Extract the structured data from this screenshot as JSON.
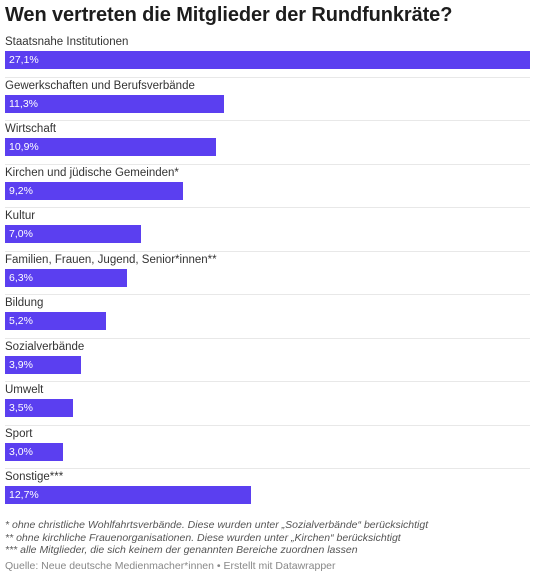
{
  "header": {
    "title": "Wen vertreten die Mitglieder der Rundfunkräte?"
  },
  "chart_data": {
    "type": "bar",
    "orientation": "horizontal",
    "title": "Wen vertreten die Mitglieder der Rundfunkräte?",
    "categories": [
      "Staatsnahe Institutionen",
      "Gewerkschaften und Berufsverbände",
      "Wirtschaft",
      "Kirchen und jüdische Gemeinden*",
      "Kultur",
      "Familien, Frauen, Jugend, Senior*innen**",
      "Bildung",
      "Sozialverbände",
      "Umwelt",
      "Sport",
      "Sonstige***"
    ],
    "values": [
      27.1,
      11.3,
      10.9,
      9.2,
      7.0,
      6.3,
      5.2,
      3.9,
      3.5,
      3.0,
      12.7
    ],
    "value_labels": [
      "27,1%",
      "11,3%",
      "10,9%",
      "9,2%",
      "7,0%",
      "6,3%",
      "5,2%",
      "3,9%",
      "3,5%",
      "3,0%",
      "12,7%"
    ],
    "xlim": [
      0,
      27.1
    ],
    "bar_color": "#5b3ff0",
    "grid": false,
    "legend": "none"
  },
  "footer": {
    "notes": [
      "* ohne christliche Wohlfahrtsverbände. Diese wurden unter „Sozialverbände“ berücksichtigt",
      "** ohne kirchliche Frauenorganisationen. Diese wurden unter „Kirchen“ berücksichtigt",
      "*** alle Mitglieder, die sich keinem der genannten Bereiche zuordnen lassen"
    ],
    "source": "Quelle: Neue deutsche Medienmacher*innen • Erstellt mit Datawrapper"
  }
}
